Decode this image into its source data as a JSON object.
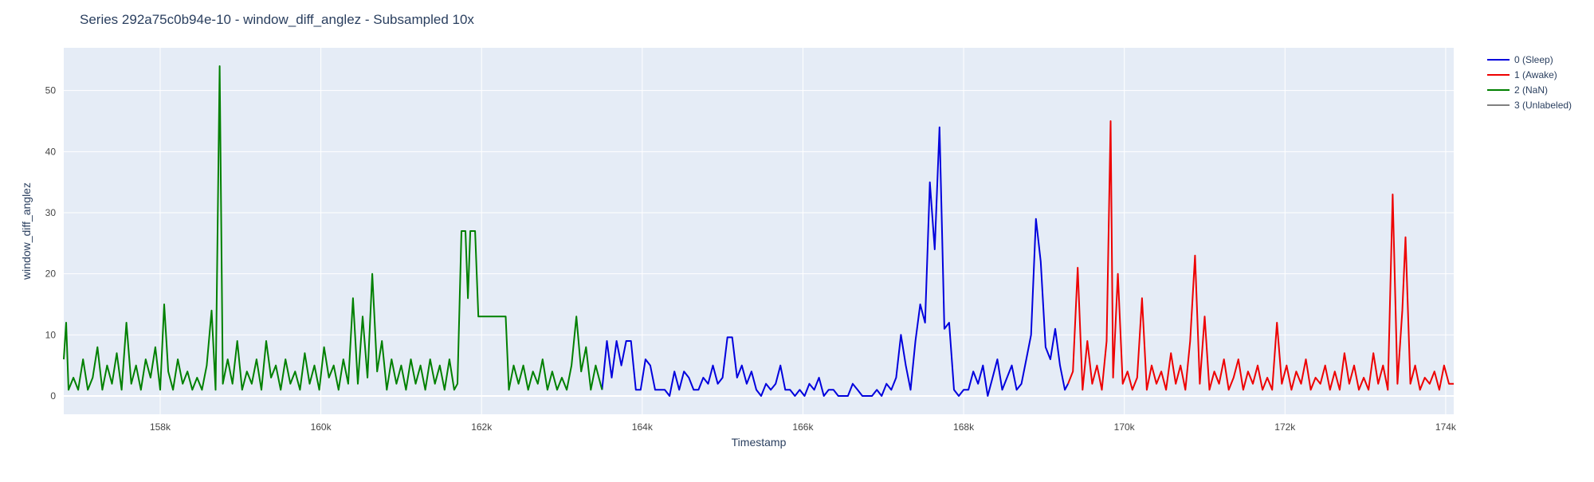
{
  "chart_data": {
    "type": "line",
    "title": "Series 292a75c0b94e-10 - window_diff_anglez - Subsampled 10x",
    "xlabel": "Timestamp",
    "ylabel": "window_diff_anglez",
    "xlim": [
      156800,
      174100
    ],
    "ylim": [
      -3,
      57
    ],
    "x_ticks": [
      158000,
      160000,
      162000,
      164000,
      166000,
      168000,
      170000,
      172000,
      174000
    ],
    "x_tick_labels": [
      "158k",
      "160k",
      "162k",
      "164k",
      "166k",
      "168k",
      "170k",
      "172k",
      "174k"
    ],
    "y_ticks": [
      0,
      10,
      20,
      30,
      40,
      50
    ],
    "y_tick_labels": [
      "0",
      "10",
      "20",
      "30",
      "40",
      "50"
    ],
    "grid": true,
    "legend_position": "top-right outside",
    "colors": {
      "plot_bg": "#e5ecf6",
      "grid": "#ffffff",
      "text": "#2a3f5f"
    },
    "series": [
      {
        "name": "0 (Sleep)",
        "color": "#0000dd",
        "points": [
          [
            163500,
            1
          ],
          [
            163560,
            9
          ],
          [
            163620,
            3
          ],
          [
            163680,
            9
          ],
          [
            163740,
            5
          ],
          [
            163800,
            9
          ],
          [
            163860,
            9
          ],
          [
            163920,
            1
          ],
          [
            163980,
            1
          ],
          [
            164040,
            6
          ],
          [
            164100,
            5
          ],
          [
            164160,
            1
          ],
          [
            164220,
            1
          ],
          [
            164280,
            1
          ],
          [
            164340,
            0
          ],
          [
            164400,
            4
          ],
          [
            164460,
            1
          ],
          [
            164520,
            4
          ],
          [
            164580,
            3
          ],
          [
            164640,
            1
          ],
          [
            164700,
            1
          ],
          [
            164760,
            3
          ],
          [
            164820,
            2
          ],
          [
            164880,
            5
          ],
          [
            164940,
            2
          ],
          [
            165000,
            3
          ],
          [
            165060,
            9.6
          ],
          [
            165120,
            9.6
          ],
          [
            165180,
            3
          ],
          [
            165240,
            5
          ],
          [
            165300,
            2
          ],
          [
            165360,
            4
          ],
          [
            165420,
            1
          ],
          [
            165480,
            0
          ],
          [
            165540,
            2
          ],
          [
            165600,
            1
          ],
          [
            165660,
            2
          ],
          [
            165720,
            5
          ],
          [
            165780,
            1
          ],
          [
            165840,
            1
          ],
          [
            165900,
            0
          ],
          [
            165960,
            1
          ],
          [
            166020,
            0
          ],
          [
            166080,
            2
          ],
          [
            166140,
            1
          ],
          [
            166200,
            3
          ],
          [
            166260,
            0
          ],
          [
            166320,
            1
          ],
          [
            166380,
            1
          ],
          [
            166440,
            0
          ],
          [
            166500,
            0
          ],
          [
            166560,
            0
          ],
          [
            166620,
            2
          ],
          [
            166680,
            1
          ],
          [
            166740,
            0
          ],
          [
            166800,
            0
          ],
          [
            166860,
            0
          ],
          [
            166920,
            1
          ],
          [
            166980,
            0
          ],
          [
            167040,
            2
          ],
          [
            167100,
            1
          ],
          [
            167160,
            3
          ],
          [
            167220,
            10
          ],
          [
            167280,
            5
          ],
          [
            167340,
            1
          ],
          [
            167400,
            9
          ],
          [
            167460,
            15
          ],
          [
            167520,
            12
          ],
          [
            167580,
            35
          ],
          [
            167640,
            24
          ],
          [
            167700,
            44
          ],
          [
            167730,
            28
          ],
          [
            167760,
            11
          ],
          [
            167820,
            12
          ],
          [
            167880,
            1
          ],
          [
            167940,
            0
          ],
          [
            168000,
            1
          ],
          [
            168060,
            1
          ],
          [
            168120,
            4
          ],
          [
            168180,
            2
          ],
          [
            168240,
            5
          ],
          [
            168300,
            0
          ],
          [
            168360,
            3
          ],
          [
            168420,
            6
          ],
          [
            168480,
            1
          ],
          [
            168540,
            3
          ],
          [
            168600,
            5
          ],
          [
            168660,
            1
          ],
          [
            168720,
            2
          ],
          [
            168780,
            6
          ],
          [
            168840,
            10
          ],
          [
            168900,
            29
          ],
          [
            168960,
            22
          ],
          [
            169020,
            8
          ],
          [
            169080,
            6
          ],
          [
            169140,
            11
          ],
          [
            169200,
            5
          ],
          [
            169260,
            1
          ],
          [
            169300,
            2
          ]
        ]
      },
      {
        "name": "1 (Awake)",
        "color": "#ee0000",
        "points": [
          [
            169300,
            2
          ],
          [
            169360,
            4
          ],
          [
            169420,
            21
          ],
          [
            169480,
            1
          ],
          [
            169540,
            9
          ],
          [
            169600,
            2
          ],
          [
            169660,
            5
          ],
          [
            169720,
            1
          ],
          [
            169780,
            9
          ],
          [
            169830,
            45
          ],
          [
            169860,
            3
          ],
          [
            169920,
            20
          ],
          [
            169980,
            2
          ],
          [
            170040,
            4
          ],
          [
            170100,
            1
          ],
          [
            170160,
            3
          ],
          [
            170220,
            16
          ],
          [
            170280,
            1
          ],
          [
            170340,
            5
          ],
          [
            170400,
            2
          ],
          [
            170460,
            4
          ],
          [
            170520,
            1
          ],
          [
            170580,
            7
          ],
          [
            170640,
            2
          ],
          [
            170700,
            5
          ],
          [
            170760,
            1
          ],
          [
            170820,
            9
          ],
          [
            170880,
            23
          ],
          [
            170940,
            2
          ],
          [
            171000,
            13
          ],
          [
            171060,
            1
          ],
          [
            171120,
            4
          ],
          [
            171180,
            2
          ],
          [
            171240,
            6
          ],
          [
            171300,
            1
          ],
          [
            171360,
            3
          ],
          [
            171420,
            6
          ],
          [
            171480,
            1
          ],
          [
            171540,
            4
          ],
          [
            171600,
            2
          ],
          [
            171660,
            5
          ],
          [
            171720,
            1
          ],
          [
            171780,
            3
          ],
          [
            171840,
            1
          ],
          [
            171900,
            12
          ],
          [
            171960,
            2
          ],
          [
            172020,
            5
          ],
          [
            172080,
            1
          ],
          [
            172140,
            4
          ],
          [
            172200,
            2
          ],
          [
            172260,
            6
          ],
          [
            172320,
            1
          ],
          [
            172380,
            3
          ],
          [
            172440,
            2
          ],
          [
            172500,
            5
          ],
          [
            172560,
            1
          ],
          [
            172620,
            4
          ],
          [
            172680,
            1
          ],
          [
            172740,
            7
          ],
          [
            172800,
            2
          ],
          [
            172860,
            5
          ],
          [
            172920,
            1
          ],
          [
            172980,
            3
          ],
          [
            173040,
            1
          ],
          [
            173100,
            7
          ],
          [
            173160,
            2
          ],
          [
            173220,
            5
          ],
          [
            173280,
            1
          ],
          [
            173340,
            33
          ],
          [
            173400,
            2
          ],
          [
            173460,
            14
          ],
          [
            173500,
            26
          ],
          [
            173560,
            2
          ],
          [
            173620,
            5
          ],
          [
            173680,
            1
          ],
          [
            173740,
            3
          ],
          [
            173800,
            2
          ],
          [
            173860,
            4
          ],
          [
            173920,
            1
          ],
          [
            173980,
            5
          ],
          [
            174040,
            2
          ],
          [
            174100,
            2
          ]
        ]
      },
      {
        "name": "2 (NaN)",
        "color": "#008000",
        "points": [
          [
            156800,
            6
          ],
          [
            156830,
            12
          ],
          [
            156860,
            1
          ],
          [
            156920,
            3
          ],
          [
            156980,
            1
          ],
          [
            157040,
            6
          ],
          [
            157100,
            1
          ],
          [
            157160,
            3
          ],
          [
            157220,
            8
          ],
          [
            157280,
            1
          ],
          [
            157340,
            5
          ],
          [
            157400,
            2
          ],
          [
            157460,
            7
          ],
          [
            157520,
            1
          ],
          [
            157580,
            12
          ],
          [
            157640,
            2
          ],
          [
            157700,
            5
          ],
          [
            157760,
            1
          ],
          [
            157820,
            6
          ],
          [
            157880,
            3
          ],
          [
            157940,
            8
          ],
          [
            158000,
            1
          ],
          [
            158050,
            15
          ],
          [
            158100,
            4
          ],
          [
            158160,
            1
          ],
          [
            158220,
            6
          ],
          [
            158280,
            2
          ],
          [
            158340,
            4
          ],
          [
            158400,
            1
          ],
          [
            158460,
            3
          ],
          [
            158520,
            1
          ],
          [
            158580,
            5
          ],
          [
            158640,
            14
          ],
          [
            158690,
            1
          ],
          [
            158740,
            54
          ],
          [
            158780,
            2
          ],
          [
            158840,
            6
          ],
          [
            158900,
            2
          ],
          [
            158960,
            9
          ],
          [
            159020,
            1
          ],
          [
            159080,
            4
          ],
          [
            159140,
            2
          ],
          [
            159200,
            6
          ],
          [
            159260,
            1
          ],
          [
            159320,
            9
          ],
          [
            159380,
            3
          ],
          [
            159440,
            5
          ],
          [
            159500,
            1
          ],
          [
            159560,
            6
          ],
          [
            159620,
            2
          ],
          [
            159680,
            4
          ],
          [
            159740,
            1
          ],
          [
            159800,
            7
          ],
          [
            159860,
            2
          ],
          [
            159920,
            5
          ],
          [
            159980,
            1
          ],
          [
            160040,
            8
          ],
          [
            160100,
            3
          ],
          [
            160160,
            5
          ],
          [
            160220,
            1
          ],
          [
            160280,
            6
          ],
          [
            160340,
            2
          ],
          [
            160400,
            16
          ],
          [
            160460,
            2
          ],
          [
            160520,
            13
          ],
          [
            160580,
            3
          ],
          [
            160640,
            20
          ],
          [
            160700,
            4
          ],
          [
            160760,
            9
          ],
          [
            160820,
            1
          ],
          [
            160880,
            6
          ],
          [
            160940,
            2
          ],
          [
            161000,
            5
          ],
          [
            161060,
            1
          ],
          [
            161120,
            6
          ],
          [
            161180,
            2
          ],
          [
            161240,
            5
          ],
          [
            161300,
            1
          ],
          [
            161360,
            6
          ],
          [
            161420,
            2
          ],
          [
            161480,
            5
          ],
          [
            161540,
            1
          ],
          [
            161600,
            6
          ],
          [
            161660,
            1
          ],
          [
            161700,
            2
          ],
          [
            161750,
            27
          ],
          [
            161800,
            27
          ],
          [
            161830,
            16
          ],
          [
            161860,
            27
          ],
          [
            161920,
            27
          ],
          [
            161960,
            13
          ],
          [
            162020,
            13
          ],
          [
            162100,
            13
          ],
          [
            162200,
            13
          ],
          [
            162300,
            13
          ],
          [
            162340,
            1
          ],
          [
            162400,
            5
          ],
          [
            162460,
            2
          ],
          [
            162520,
            5
          ],
          [
            162580,
            1
          ],
          [
            162640,
            4
          ],
          [
            162700,
            2
          ],
          [
            162760,
            6
          ],
          [
            162820,
            1
          ],
          [
            162880,
            4
          ],
          [
            162940,
            1
          ],
          [
            163000,
            3
          ],
          [
            163060,
            1
          ],
          [
            163120,
            5
          ],
          [
            163180,
            13
          ],
          [
            163240,
            4
          ],
          [
            163300,
            8
          ],
          [
            163360,
            1
          ],
          [
            163420,
            5
          ],
          [
            163480,
            2
          ],
          [
            163500,
            1
          ]
        ]
      },
      {
        "name": "3 (Unlabeled)",
        "color": "#808080",
        "points": []
      }
    ]
  }
}
